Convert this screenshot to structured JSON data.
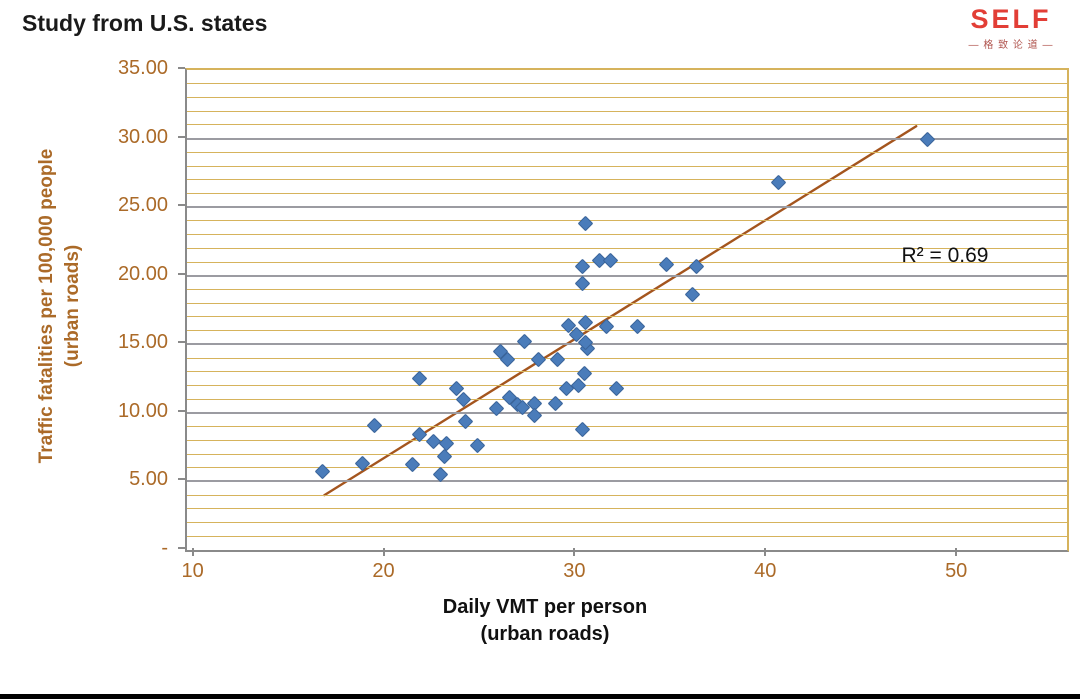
{
  "header": {
    "title": "Study from U.S. states"
  },
  "logo": {
    "brand": "SELF",
    "brand_color": "#e23e36",
    "subtitle": "— 格 致 论 道 —",
    "subtitle_color": "#b0544e"
  },
  "chart_data": {
    "type": "scatter",
    "title": "Study from U.S. states",
    "xlabel_line1": "Daily VMT per person",
    "xlabel_line2": "(urban roads)",
    "ylabel_line1": "Traffic fatalities per 100,000 people",
    "ylabel_line2": "(urban roads)",
    "annotation": "R² = 0.69",
    "xlim": [
      9.6,
      55.7
    ],
    "ylim": [
      0,
      35
    ],
    "x_ticks": [
      10,
      20,
      30,
      40,
      50
    ],
    "y_ticks": [
      {
        "label": "35.00",
        "value": 35
      },
      {
        "label": "30.00",
        "value": 30
      },
      {
        "label": "25.00",
        "value": 25
      },
      {
        "label": "20.00",
        "value": 20
      },
      {
        "label": "15.00",
        "value": 15
      },
      {
        "label": "10.00",
        "value": 10
      },
      {
        "label": "5.00",
        "value": 5
      },
      {
        "label": "-",
        "value": 0
      }
    ],
    "y_minor_step": 1,
    "y_major_step": 5,
    "grid": true,
    "legend": "none",
    "points": [
      [
        16.7,
        5.7
      ],
      [
        18.8,
        6.3
      ],
      [
        19.4,
        9.1
      ],
      [
        21.4,
        6.2
      ],
      [
        21.8,
        8.4
      ],
      [
        22.5,
        7.9
      ],
      [
        23.2,
        7.8
      ],
      [
        23.1,
        6.8
      ],
      [
        22.9,
        5.5
      ],
      [
        24.2,
        9.4
      ],
      [
        24.8,
        7.6
      ],
      [
        21.8,
        12.5
      ],
      [
        23.7,
        11.8
      ],
      [
        24.1,
        11.0
      ],
      [
        25.8,
        10.3
      ],
      [
        26.5,
        11.1
      ],
      [
        26.9,
        10.6
      ],
      [
        27.2,
        10.4
      ],
      [
        27.8,
        10.7
      ],
      [
        27.8,
        9.8
      ],
      [
        28.9,
        10.7
      ],
      [
        29.5,
        11.8
      ],
      [
        30.1,
        12.0
      ],
      [
        30.3,
        8.8
      ],
      [
        32.1,
        11.8
      ],
      [
        26.0,
        14.5
      ],
      [
        26.4,
        13.9
      ],
      [
        27.3,
        15.2
      ],
      [
        28.0,
        13.9
      ],
      [
        29.0,
        13.9
      ],
      [
        30.4,
        12.9
      ],
      [
        30.6,
        14.7
      ],
      [
        30.5,
        15.1
      ],
      [
        30.0,
        15.7
      ],
      [
        30.5,
        16.6
      ],
      [
        29.6,
        16.4
      ],
      [
        31.6,
        16.3
      ],
      [
        33.2,
        16.3
      ],
      [
        30.3,
        20.7
      ],
      [
        31.2,
        21.1
      ],
      [
        31.8,
        21.1
      ],
      [
        30.3,
        19.4
      ],
      [
        34.7,
        20.8
      ],
      [
        36.3,
        20.7
      ],
      [
        36.1,
        18.6
      ],
      [
        30.5,
        23.8
      ],
      [
        40.6,
        26.8
      ],
      [
        48.4,
        29.9
      ]
    ],
    "trendline": {
      "x1": 16.8,
      "y1": 4.0,
      "x2": 47.8,
      "y2": 30.9
    },
    "colors": {
      "point": "#4a7cba",
      "point_border": "#3a649a",
      "trend": "#a4551e",
      "minor_grid": "#d6b35c",
      "major_grid": "#9b9ba1",
      "axis": "#8a8a8a",
      "tick_label": "#ab6a28"
    }
  }
}
